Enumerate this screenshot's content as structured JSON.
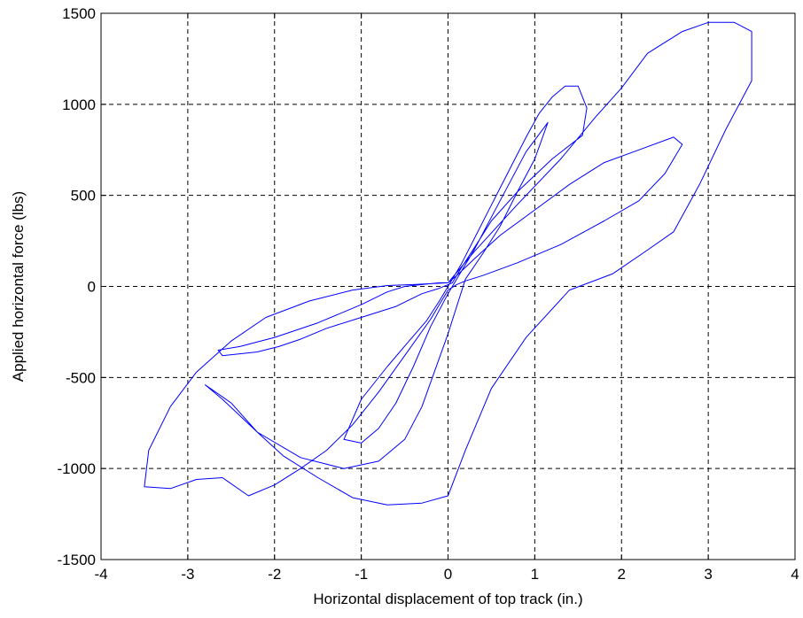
{
  "chart_data": {
    "type": "line",
    "title": "",
    "xlabel": "Horizontal displacement of top track (in.)",
    "ylabel": "Applied horizontal force (lbs)",
    "xlim": [
      -4,
      4
    ],
    "ylim": [
      -1500,
      1500
    ],
    "xticks": [
      -4,
      -3,
      -2,
      -1,
      0,
      1,
      2,
      3,
      4
    ],
    "yticks": [
      -1500,
      -1000,
      -500,
      0,
      500,
      1000,
      1500
    ],
    "xtick_labels": [
      "-4",
      "-3",
      "-2",
      "-1",
      "0",
      "1",
      "2",
      "3",
      "4"
    ],
    "ytick_labels": [
      "-1500",
      "-1000",
      "-500",
      "0",
      "500",
      "1000",
      "1500"
    ],
    "grid": true,
    "grid_style": "dashed",
    "legend": "none",
    "series": [
      {
        "color": "#0000ff",
        "x": [
          0,
          0.15,
          0.3,
          0.45,
          0.6,
          0.75,
          0.9,
          1.05,
          1.2,
          1.35,
          1.5,
          1.6,
          1.55,
          1.2,
          0.8,
          0.5,
          0.3,
          0.15,
          0.05,
          -0.1,
          -0.3,
          -0.6,
          -1.0,
          -1.4,
          -1.7,
          -1.95,
          -2.2,
          -2.4,
          -2.6,
          -2.65,
          -2.4,
          -2.0,
          -1.5,
          -1.0,
          -0.7,
          -0.5,
          -0.3,
          -0.1,
          0,
          0.1,
          0.3,
          0.6,
          1.0,
          1.4,
          1.8,
          2.2,
          2.6,
          2.7,
          2.5,
          2.2,
          1.8,
          1.3,
          0.8,
          0.4,
          0.2,
          0.1,
          0,
          -0.2,
          -0.5,
          -0.8,
          -1.1,
          -1.4,
          -1.7,
          -2.0,
          -2.3,
          -2.6,
          -2.9,
          -3.2,
          -3.5,
          -3.45,
          -3.2,
          -2.9,
          -2.5,
          -2.1,
          -1.6,
          -1.1,
          -0.7,
          -0.4,
          -0.2,
          0,
          0.3,
          0.8,
          1.3,
          1.7,
          2.0,
          2.3,
          2.7,
          3.0,
          3.3,
          3.5,
          3.5,
          3.2,
          2.9,
          2.6,
          2.3,
          1.9,
          1.4,
          0.9,
          0.5,
          0.2,
          0,
          -0.3,
          -0.7,
          -1.1,
          -1.5,
          -1.9,
          -2.2,
          -2.5,
          -2.8,
          -2.6,
          -2.2,
          -1.7,
          -1.2,
          -0.8,
          -0.5,
          -0.3,
          -0.15,
          0,
          0.2,
          0.4,
          0.6,
          0.8,
          1.0,
          1.15,
          0.9,
          0.7,
          0.5,
          0.3,
          0.15,
          0,
          -0.2,
          -0.4,
          -0.6,
          -0.8,
          -1.0,
          -1.2,
          -1.0,
          -0.7,
          -0.45,
          -0.25,
          -0.1,
          0
        ],
        "y": [
          0,
          120,
          260,
          400,
          540,
          680,
          820,
          950,
          1040,
          1100,
          1100,
          980,
          830,
          700,
          520,
          360,
          210,
          100,
          20,
          -10,
          -40,
          -110,
          -170,
          -230,
          -290,
          -330,
          -360,
          -370,
          -380,
          -350,
          -330,
          -280,
          -200,
          -100,
          -30,
          0,
          10,
          20,
          20,
          60,
          150,
          280,
          420,
          560,
          680,
          750,
          820,
          780,
          620,
          470,
          360,
          230,
          130,
          60,
          30,
          10,
          -20,
          -180,
          -380,
          -580,
          -760,
          -900,
          -1000,
          -1090,
          -1150,
          -1050,
          -1060,
          -1110,
          -1100,
          -900,
          -660,
          -470,
          -300,
          -170,
          -80,
          -20,
          5,
          10,
          15,
          20,
          190,
          450,
          700,
          930,
          1090,
          1280,
          1400,
          1450,
          1450,
          1400,
          1130,
          860,
          560,
          300,
          200,
          70,
          -20,
          -280,
          -560,
          -900,
          -1150,
          -1190,
          -1200,
          -1160,
          -1050,
          -930,
          -800,
          -640,
          -540,
          -620,
          -800,
          -940,
          -1000,
          -960,
          -840,
          -660,
          -460,
          -260,
          40,
          180,
          330,
          520,
          700,
          900,
          740,
          560,
          380,
          200,
          80,
          -40,
          -220,
          -440,
          -640,
          -780,
          -860,
          -840,
          -620,
          -440,
          -300,
          -190,
          -80,
          0
        ]
      }
    ]
  }
}
